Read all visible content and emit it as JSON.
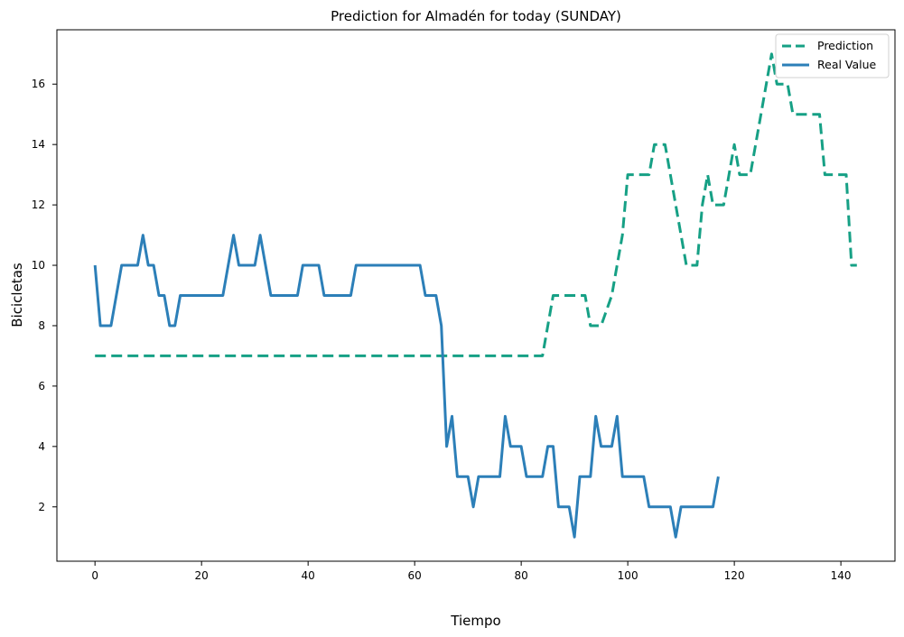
{
  "chart_data": {
    "type": "line",
    "title": "Prediction for Almadén for today (SUNDAY)",
    "xlabel": "Tiempo",
    "ylabel": "Bicicletas",
    "xlim": [
      -7.15,
      150.15
    ],
    "ylim": [
      0.2,
      17.8
    ],
    "xticks": [
      0,
      20,
      40,
      60,
      80,
      100,
      120,
      140
    ],
    "yticks": [
      2,
      4,
      6,
      8,
      10,
      12,
      14,
      16
    ],
    "grid": false,
    "legend_position": "top-right",
    "series": [
      {
        "name": "Prediction",
        "color": "#16a085",
        "style": "dashed",
        "points": [
          [
            0,
            7
          ],
          [
            84,
            7
          ],
          [
            86,
            9
          ],
          [
            92,
            9
          ],
          [
            93,
            8
          ],
          [
            95,
            8
          ],
          [
            97,
            9
          ],
          [
            98,
            10
          ],
          [
            99,
            11
          ],
          [
            100,
            13
          ],
          [
            104,
            13
          ],
          [
            105,
            14
          ],
          [
            107,
            14
          ],
          [
            108,
            13
          ],
          [
            111,
            10
          ],
          [
            113,
            10
          ],
          [
            114,
            12
          ],
          [
            115,
            13
          ],
          [
            116,
            12
          ],
          [
            118,
            12
          ],
          [
            120,
            14
          ],
          [
            121,
            13
          ],
          [
            123,
            13
          ],
          [
            125,
            15
          ],
          [
            127,
            17
          ],
          [
            128,
            16
          ],
          [
            130,
            16
          ],
          [
            131,
            15
          ],
          [
            136,
            15
          ],
          [
            137,
            13
          ],
          [
            140,
            13
          ],
          [
            141,
            13
          ],
          [
            142,
            10
          ],
          [
            143,
            10
          ]
        ]
      },
      {
        "name": "Real Value",
        "color": "#2c7fb8",
        "style": "solid",
        "points": [
          [
            0,
            10
          ],
          [
            1,
            8
          ],
          [
            3,
            8
          ],
          [
            4,
            9
          ],
          [
            5,
            10
          ],
          [
            8,
            10
          ],
          [
            9,
            11
          ],
          [
            10,
            10
          ],
          [
            11,
            10
          ],
          [
            12,
            9
          ],
          [
            13,
            9
          ],
          [
            14,
            8
          ],
          [
            15,
            8
          ],
          [
            16,
            9
          ],
          [
            24,
            9
          ],
          [
            25,
            10
          ],
          [
            26,
            11
          ],
          [
            27,
            10
          ],
          [
            30,
            10
          ],
          [
            31,
            11
          ],
          [
            32,
            10
          ],
          [
            33,
            9
          ],
          [
            38,
            9
          ],
          [
            39,
            10
          ],
          [
            42,
            10
          ],
          [
            43,
            9
          ],
          [
            48,
            9
          ],
          [
            49,
            10
          ],
          [
            61,
            10
          ],
          [
            62,
            9
          ],
          [
            64,
            9
          ],
          [
            65,
            8
          ],
          [
            66,
            4
          ],
          [
            67,
            5
          ],
          [
            68,
            3
          ],
          [
            70,
            3
          ],
          [
            71,
            2
          ],
          [
            72,
            3
          ],
          [
            76,
            3
          ],
          [
            77,
            5
          ],
          [
            78,
            4
          ],
          [
            80,
            4
          ],
          [
            81,
            3
          ],
          [
            84,
            3
          ],
          [
            85,
            4
          ],
          [
            86,
            4
          ],
          [
            87,
            2
          ],
          [
            89,
            2
          ],
          [
            90,
            1
          ],
          [
            91,
            3
          ],
          [
            93,
            3
          ],
          [
            94,
            5
          ],
          [
            95,
            4
          ],
          [
            97,
            4
          ],
          [
            98,
            5
          ],
          [
            99,
            3
          ],
          [
            103,
            3
          ],
          [
            104,
            2
          ],
          [
            108,
            2
          ],
          [
            109,
            1
          ],
          [
            110,
            2
          ],
          [
            115,
            2
          ],
          [
            116,
            2
          ],
          [
            117,
            3
          ]
        ]
      }
    ]
  }
}
